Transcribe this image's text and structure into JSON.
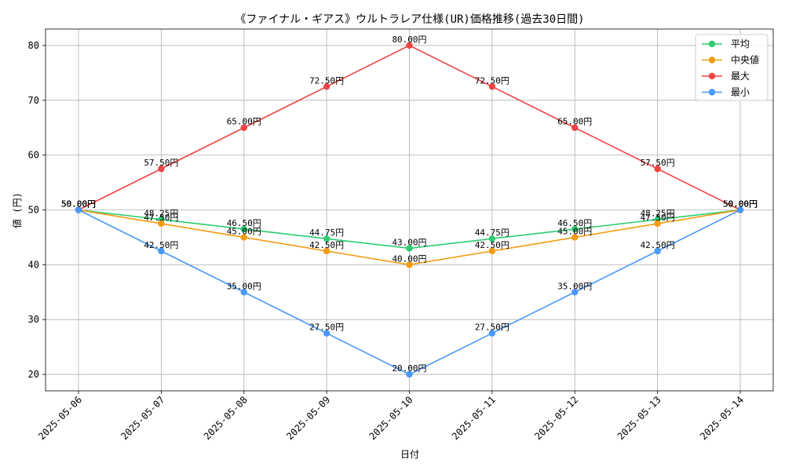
{
  "chart_data": {
    "type": "line",
    "title": "《ファイナル・ギアス》ウルトラレア仕様(UR)価格推移(過去30日間)",
    "xlabel": "日付",
    "ylabel": "値 (円)",
    "categories": [
      "2025-05-06",
      "2025-05-07",
      "2025-05-08",
      "2025-05-09",
      "2025-05-10",
      "2025-05-11",
      "2025-05-12",
      "2025-05-13",
      "2025-05-14"
    ],
    "ylim": [
      17,
      83
    ],
    "yticks": [
      20,
      30,
      40,
      50,
      60,
      70,
      80
    ],
    "grid": true,
    "legend_position": "top-right",
    "value_suffix": "円",
    "series": [
      {
        "name": "平均",
        "color": "#2ecc71",
        "values": [
          50.0,
          48.25,
          46.5,
          44.75,
          43.0,
          44.75,
          46.5,
          48.25,
          50.0
        ]
      },
      {
        "name": "中央値",
        "color": "#f39c12",
        "values": [
          50.0,
          47.5,
          45.0,
          42.5,
          40.0,
          42.5,
          45.0,
          47.5,
          50.0
        ]
      },
      {
        "name": "最大",
        "color": "#ef4444",
        "values": [
          50.0,
          57.5,
          65.0,
          72.5,
          80.0,
          72.5,
          65.0,
          57.5,
          50.0
        ]
      },
      {
        "name": "最小",
        "color": "#4a98f7",
        "values": [
          50.0,
          42.5,
          35.0,
          27.5,
          20.0,
          27.5,
          35.0,
          42.5,
          50.0
        ]
      }
    ]
  }
}
